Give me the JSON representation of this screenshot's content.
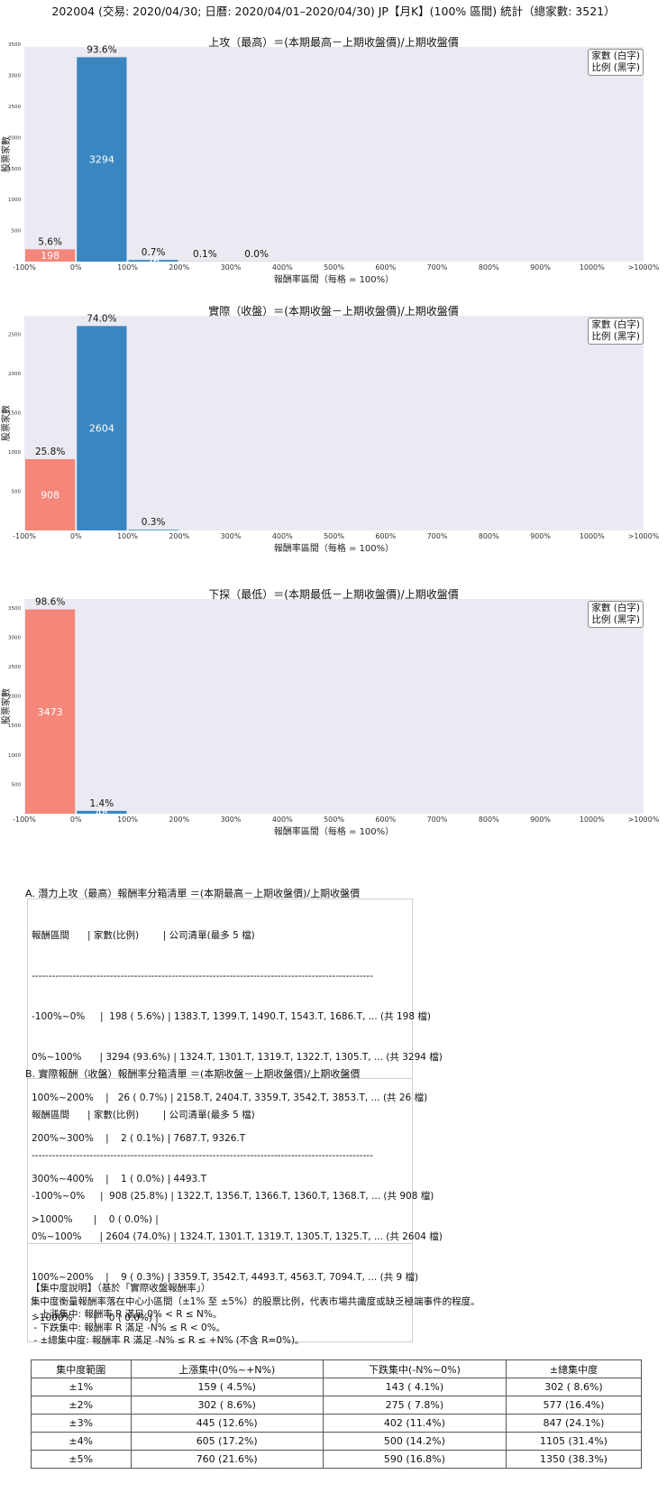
{
  "header": {
    "title": "202004 (交易: 2020/04/30; 日曆: 2020/04/01–2020/04/30) JP【月K】(100% 區間) 統計（總家數: 3521）"
  },
  "legend": {
    "line1": "家數 (白字)",
    "line2": "比例 (黑字)"
  },
  "colors": {
    "neg_bar": "#f4877a",
    "pos_bar": "#3a86c0",
    "plot_bg": "#eaeaf2"
  },
  "chart_data": [
    {
      "type": "bar",
      "title": "上攻（最高）＝(本期最高－上期收盤價)/上期收盤價",
      "xlabel": "報酬率區間（每格 = 100%）",
      "ylabel": "股票家數",
      "x_ticks": [
        "-100%",
        "0%",
        "100%",
        "200%",
        "300%",
        "400%",
        "500%",
        "600%",
        "700%",
        "800%",
        "900%",
        "1000%",
        ">1000%"
      ],
      "y_ticks": [
        500,
        1000,
        1500,
        2000,
        2500,
        3000,
        3500
      ],
      "ylim": [
        0,
        3460
      ],
      "bars": [
        {
          "bin": 0,
          "count": 198,
          "pct": "5.6%",
          "count_label": "198"
        },
        {
          "bin": 1,
          "count": 3294,
          "pct": "93.6%",
          "count_label": "3294"
        },
        {
          "bin": 2,
          "count": 26,
          "pct": "0.7%",
          "count_label": "26"
        },
        {
          "bin": 3,
          "count": 2,
          "pct": "0.1%",
          "count_label": ""
        },
        {
          "bin": 4,
          "count": 1,
          "pct": "0.0%",
          "count_label": ""
        }
      ]
    },
    {
      "type": "bar",
      "title": "實際（收盤）＝(本期收盤－上期收盤價)/上期收盤價",
      "xlabel": "報酬率區間（每格 = 100%）",
      "ylabel": "股票家數",
      "x_ticks": [
        "-100%",
        "0%",
        "100%",
        "200%",
        "300%",
        "400%",
        "500%",
        "600%",
        "700%",
        "800%",
        "900%",
        "1000%",
        ">1000%"
      ],
      "y_ticks": [
        500,
        1000,
        1500,
        2000,
        2500
      ],
      "ylim": [
        0,
        2735
      ],
      "bars": [
        {
          "bin": 0,
          "count": 908,
          "pct": "25.8%",
          "count_label": "908"
        },
        {
          "bin": 1,
          "count": 2604,
          "pct": "74.0%",
          "count_label": "2604"
        },
        {
          "bin": 2,
          "count": 9,
          "pct": "0.3%",
          "count_label": ""
        }
      ]
    },
    {
      "type": "bar",
      "title": "下探（最低）＝(本期最低－上期收盤價)/上期收盤價",
      "xlabel": "報酬率區間（每格 = 100%）",
      "ylabel": "股票家數",
      "x_ticks": [
        "-100%",
        "0%",
        "100%",
        "200%",
        "300%",
        "400%",
        "500%",
        "600%",
        "700%",
        "800%",
        "900%",
        "1000%",
        ">1000%"
      ],
      "y_ticks": [
        500,
        1000,
        1500,
        2000,
        2500,
        3000,
        3500
      ],
      "ylim": [
        0,
        3650
      ],
      "bars": [
        {
          "bin": 0,
          "count": 3473,
          "pct": "98.6%",
          "count_label": "3473"
        },
        {
          "bin": 1,
          "count": 48,
          "pct": "1.4%",
          "count_label": "48"
        }
      ]
    }
  ],
  "list_a": {
    "title": "A. 潛力上攻（最高）報酬率分箱清單 ＝(本期最高－上期收盤價)/上期收盤價",
    "header": "報酬區間      | 家數(比例)        | 公司清單(最多 5 檔)",
    "divider": "----------------------------------------------------------------------------------------------------",
    "rows": [
      "-100%~0%     |  198 ( 5.6%) | 1383.T, 1399.T, 1490.T, 1543.T, 1686.T, ... (共 198 檔)",
      "0%~100%      | 3294 (93.6%) | 1324.T, 1301.T, 1319.T, 1322.T, 1305.T, ... (共 3294 檔)",
      "100%~200%    |   26 ( 0.7%) | 2158.T, 2404.T, 3359.T, 3542.T, 3853.T, ... (共 26 檔)",
      "200%~300%    |    2 ( 0.1%) | 7687.T, 9326.T",
      "300%~400%    |    1 ( 0.0%) | 4493.T",
      ">1000%       |    0 ( 0.0%) |"
    ]
  },
  "list_b": {
    "title": "B. 實際報酬（收盤）報酬率分箱清單 ＝(本期收盤－上期收盤價)/上期收盤價",
    "header": "報酬區間      | 家數(比例)        | 公司清單(最多 5 檔)",
    "divider": "----------------------------------------------------------------------------------------------------",
    "rows": [
      "-100%~0%     |  908 (25.8%) | 1322.T, 1356.T, 1366.T, 1360.T, 1368.T, ... (共 908 檔)",
      "0%~100%      | 2604 (74.0%) | 1324.T, 1301.T, 1319.T, 1305.T, 1325.T, ... (共 2604 檔)",
      "100%~200%    |    9 ( 0.3%) | 3359.T, 3542.T, 4493.T, 4563.T, 7094.T, ... (共 9 檔)",
      ">1000%       |    0 ( 0.0%) |"
    ]
  },
  "note": {
    "lines": [
      "【集中度說明】（基於「實際收盤報酬率」）",
      "集中度衡量報酬率落在中心小區間（±1% 至 ±5%）的股票比例，代表市場共識度或缺乏極端事件的程度。",
      " - 上漲集中: 報酬率 R 滿足 0% < R ≤ N%。",
      " - 下跌集中: 報酬率 R 滿足 -N% ≤ R < 0%。",
      " - ±總集中度: 報酬率 R 滿足 -N% ≤ R ≤ +N% (不含 R=0%)。"
    ]
  },
  "conc_table": {
    "headers": [
      "集中度範圍",
      "上漲集中(0%~+N%)",
      "下跌集中(-N%~0%)",
      "±總集中度"
    ],
    "rows": [
      [
        "±1%",
        "159 ( 4.5%)",
        "143 ( 4.1%)",
        "302 ( 8.6%)"
      ],
      [
        "±2%",
        "302 ( 8.6%)",
        "275 ( 7.8%)",
        "577 (16.4%)"
      ],
      [
        "±3%",
        "445 (12.6%)",
        "402 (11.4%)",
        "847 (24.1%)"
      ],
      [
        "±4%",
        "605 (17.2%)",
        "500 (14.2%)",
        "1105 (31.4%)"
      ],
      [
        "±5%",
        "760 (21.6%)",
        "590 (16.8%)",
        "1350 (38.3%)"
      ]
    ]
  }
}
